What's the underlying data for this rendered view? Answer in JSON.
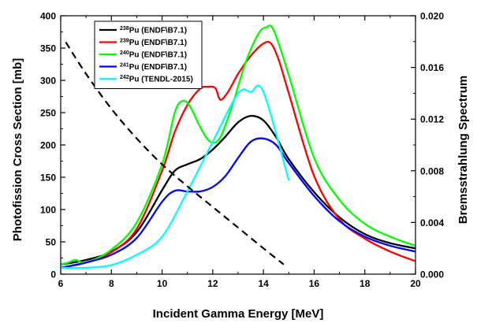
{
  "chart_data": {
    "type": "line",
    "xlabel": "Incident Gamma Energy [MeV]",
    "ylabel": "Photofission Cross Section [mb]",
    "y2label": "Bremsstrahlung Spectrum",
    "xlim": [
      6,
      20
    ],
    "ylim": [
      0,
      400
    ],
    "y2lim": [
      0,
      0.02
    ],
    "x_ticks": [
      "6",
      "8",
      "10",
      "12",
      "14",
      "16",
      "18",
      "20"
    ],
    "y_ticks": [
      "0",
      "50",
      "100",
      "150",
      "200",
      "250",
      "300",
      "350",
      "400"
    ],
    "y2_ticks": [
      "0.000",
      "0.004",
      "0.008",
      "0.012",
      "0.016",
      "0.020"
    ],
    "grid": false,
    "legend_position": "top-left",
    "series": [
      {
        "name": "Pu (ENDF\\B7.1)",
        "sup": "238",
        "color": "#000000",
        "x": [
          6,
          7,
          8,
          9,
          10,
          10.5,
          11,
          11.5,
          12,
          12.5,
          13,
          13.5,
          14,
          14.5,
          15,
          16,
          17,
          18,
          19,
          20
        ],
        "y": [
          15,
          22,
          35,
          65,
          130,
          160,
          170,
          178,
          193,
          213,
          235,
          245,
          238,
          212,
          178,
          127,
          88,
          62,
          48,
          40
        ]
      },
      {
        "name": "Pu (ENDF\\B7.1)",
        "sup": "239",
        "color": "#ff0000",
        "x": [
          6,
          7,
          8,
          9,
          10,
          10.5,
          11,
          11.5,
          11.8,
          12.1,
          12.3,
          12.6,
          13,
          13.5,
          14,
          14.3,
          14.6,
          15,
          16,
          17,
          18,
          19,
          20
        ],
        "y": [
          10,
          18,
          34,
          70,
          160,
          220,
          262,
          287,
          290,
          288,
          270,
          282,
          310,
          338,
          357,
          357,
          332,
          280,
          152,
          85,
          55,
          35,
          20
        ]
      },
      {
        "name": "Pu (ENDF\\B7.1)",
        "sup": "240",
        "color": "#00ff00",
        "x": [
          6,
          6.3,
          6.6,
          7,
          8,
          9,
          10,
          10.5,
          10.8,
          11.1,
          11.5,
          11.9,
          12.3,
          12.8,
          13.3,
          13.8,
          14.1,
          14.4,
          15,
          16,
          17,
          18,
          19,
          20
        ],
        "y": [
          15,
          18,
          22,
          18,
          38,
          80,
          170,
          250,
          268,
          260,
          228,
          205,
          212,
          265,
          328,
          372,
          382,
          378,
          308,
          180,
          115,
          78,
          58,
          44
        ]
      },
      {
        "name": "Pu (ENDF\\B7.1)",
        "sup": "241",
        "color": "#0000ff",
        "x": [
          6,
          7,
          8,
          9,
          10,
          10.5,
          11,
          11.5,
          12,
          12.5,
          13,
          13.5,
          14,
          14.5,
          15,
          16,
          17,
          18,
          19,
          20
        ],
        "y": [
          10,
          18,
          30,
          56,
          112,
          129,
          128,
          128,
          135,
          152,
          180,
          205,
          210,
          200,
          172,
          121,
          82,
          58,
          44,
          35
        ]
      },
      {
        "name": "Pu (TENDL-2015)",
        "sup": "242",
        "color": "#00ffff",
        "x": [
          6,
          7,
          8,
          9,
          10,
          11,
          12,
          13,
          13.5,
          14,
          15
        ],
        "y": [
          10,
          10,
          14,
          30,
          58,
          128,
          205,
          280,
          282,
          282,
          145
        ]
      },
      {
        "name": "",
        "sup": "",
        "color": "#000000",
        "dashed": true,
        "axis": "right",
        "x": [
          6.2,
          7,
          8,
          9,
          10,
          11,
          12,
          13,
          14,
          14.8
        ],
        "y": [
          0.01795,
          0.0155,
          0.0128,
          0.0105,
          0.0085,
          0.0068,
          0.0052,
          0.0036,
          0.002,
          0.00075
        ]
      }
    ]
  }
}
